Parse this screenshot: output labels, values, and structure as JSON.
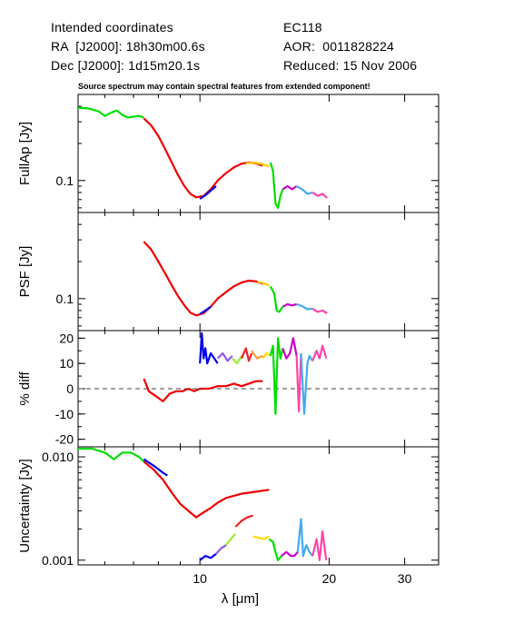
{
  "header": {
    "line1_left": "Intended coordinates",
    "line1_right": "EC118",
    "line2_left": "RA  [J2000]: 18h30m00.6s",
    "line2_right": "AOR:  0011828224",
    "line3_left": "Dec [J2000]: 1d15m20.1s",
    "line3_right": "Reduced: 15 Nov 2006"
  },
  "note": "Source spectrum may contain spectral features from extended component!",
  "chart_data": [
    {
      "type": "line",
      "panel": "fullap",
      "ylabel": "FullAp [Jy]",
      "yscale": "log",
      "yticks": [
        {
          "value": 0.1,
          "label": "0.1"
        }
      ],
      "xlim": [
        5.2,
        36
      ],
      "ylim": [
        0.055,
        0.5
      ],
      "series": [
        {
          "color": "#00dd00",
          "x": [
            5.2,
            5.5,
            5.8,
            6.0,
            6.2,
            6.4,
            6.6,
            6.8,
            7.0,
            7.2,
            7.4
          ],
          "y": [
            0.39,
            0.385,
            0.365,
            0.335,
            0.355,
            0.37,
            0.34,
            0.325,
            0.33,
            0.335,
            0.325
          ]
        },
        {
          "color": "#ee0000",
          "x": [
            7.4,
            7.7,
            8.0,
            8.3,
            8.6,
            8.9,
            9.2,
            9.5,
            9.8,
            10.2,
            10.6,
            11.0,
            11.5,
            12.0,
            12.5,
            13.0,
            13.5,
            14.0
          ],
          "y": [
            0.32,
            0.28,
            0.23,
            0.18,
            0.14,
            0.11,
            0.09,
            0.078,
            0.073,
            0.075,
            0.085,
            0.1,
            0.115,
            0.128,
            0.137,
            0.14,
            0.138,
            0.132
          ]
        },
        {
          "color": "#0000ee",
          "x": [
            10.0,
            10.3,
            10.6,
            10.9
          ],
          "y": [
            0.071,
            0.076,
            0.083,
            0.09
          ]
        },
        {
          "color": "#ffcc00",
          "x": [
            12.8,
            13.4,
            14.0,
            14.5
          ],
          "y": [
            0.138,
            0.14,
            0.136,
            0.13
          ]
        },
        {
          "color": "#00dd00",
          "x": [
            14.6,
            14.8,
            15.0,
            15.2,
            15.4,
            15.6
          ],
          "y": [
            0.14,
            0.12,
            0.065,
            0.06,
            0.075,
            0.085
          ]
        },
        {
          "color": "#cc00cc",
          "x": [
            15.6,
            16.0,
            16.4,
            16.8
          ],
          "y": [
            0.085,
            0.09,
            0.085,
            0.09
          ]
        },
        {
          "color": "#44aaee",
          "x": [
            16.8,
            17.3,
            17.8,
            18.3
          ],
          "y": [
            0.09,
            0.085,
            0.078,
            0.08
          ]
        },
        {
          "color": "#ff44aa",
          "x": [
            18.3,
            18.8,
            19.3,
            19.8
          ],
          "y": [
            0.08,
            0.075,
            0.078,
            0.072
          ]
        }
      ]
    },
    {
      "type": "line",
      "panel": "psf",
      "ylabel": "PSF [Jy]",
      "yscale": "log",
      "yticks": [
        {
          "value": 0.1,
          "label": "0.1"
        }
      ],
      "xlim": [
        5.2,
        36
      ],
      "ylim": [
        0.055,
        0.5
      ],
      "series": [
        {
          "color": "#ee0000",
          "x": [
            7.4,
            7.7,
            8.0,
            8.3,
            8.6,
            8.9,
            9.2,
            9.5,
            9.8,
            10.2,
            10.6,
            11.0,
            11.5,
            12.0,
            12.5,
            13.0,
            13.5,
            14.0
          ],
          "y": [
            0.29,
            0.25,
            0.2,
            0.16,
            0.128,
            0.104,
            0.088,
            0.077,
            0.073,
            0.076,
            0.086,
            0.1,
            0.113,
            0.126,
            0.135,
            0.14,
            0.138,
            0.132
          ]
        },
        {
          "color": "#0000ee",
          "x": [
            10.0,
            10.3,
            10.6
          ],
          "y": [
            0.075,
            0.08,
            0.086
          ]
        },
        {
          "color": "#ffcc00",
          "x": [
            13.6,
            14.0,
            14.5
          ],
          "y": [
            0.137,
            0.134,
            0.128
          ]
        },
        {
          "color": "#00dd00",
          "x": [
            14.6,
            14.9,
            15.1,
            15.3,
            15.6
          ],
          "y": [
            0.126,
            0.11,
            0.08,
            0.078,
            0.086
          ]
        },
        {
          "color": "#cc00cc",
          "x": [
            15.6,
            16.0,
            16.4,
            16.8
          ],
          "y": [
            0.086,
            0.09,
            0.088,
            0.09
          ]
        },
        {
          "color": "#44aaee",
          "x": [
            16.8,
            17.3,
            17.8,
            18.3
          ],
          "y": [
            0.09,
            0.087,
            0.082,
            0.083
          ]
        },
        {
          "color": "#ff44aa",
          "x": [
            18.3,
            18.8,
            19.3,
            19.8
          ],
          "y": [
            0.083,
            0.078,
            0.08,
            0.076
          ]
        }
      ]
    },
    {
      "type": "line",
      "panel": "diff",
      "ylabel": "% diff",
      "yscale": "linear",
      "yticks": [
        {
          "value": 20,
          "label": "20"
        },
        {
          "value": 10,
          "label": "10"
        },
        {
          "value": 0,
          "label": "0"
        },
        {
          "value": -10,
          "label": "-10"
        },
        {
          "value": -20,
          "label": "-20"
        }
      ],
      "xlim": [
        5.2,
        36
      ],
      "ylim": [
        -23,
        23
      ],
      "zero_line": 0,
      "series": [
        {
          "color": "#ee0000",
          "x": [
            7.4,
            7.6,
            7.9,
            8.2,
            8.5,
            8.8,
            9.1,
            9.4,
            9.7,
            10.0,
            10.5,
            11.0,
            11.5,
            12.0,
            12.5,
            13.0,
            13.5,
            14.0
          ],
          "y": [
            4,
            -1,
            -3,
            -5,
            -2,
            -1,
            -1,
            0,
            -1,
            0,
            0,
            1,
            1,
            2,
            1,
            2,
            3,
            3
          ]
        },
        {
          "color": "#0000ee",
          "x": [
            10.0,
            10.1,
            10.2,
            10.3,
            10.4,
            10.6,
            10.8,
            11.0
          ],
          "y": [
            10,
            22,
            12,
            16,
            10,
            14,
            12,
            10
          ]
        },
        {
          "color": "#9955ee",
          "x": [
            11.0,
            11.3,
            11.6,
            11.9
          ],
          "y": [
            12,
            14,
            11,
            13
          ]
        },
        {
          "color": "#99ee33",
          "x": [
            11.9,
            12.2,
            12.5
          ],
          "y": [
            12,
            10,
            13
          ]
        },
        {
          "color": "#ee2222",
          "x": [
            12.5,
            12.8,
            13.0,
            13.2
          ],
          "y": [
            12,
            16,
            11,
            14
          ]
        },
        {
          "color": "#ff9933",
          "x": [
            13.2,
            13.6,
            14.0
          ],
          "y": [
            15,
            12,
            13
          ]
        },
        {
          "color": "#ffdd00",
          "x": [
            14.0,
            14.3,
            14.6
          ],
          "y": [
            12,
            14,
            13
          ]
        },
        {
          "color": "#00dd00",
          "x": [
            14.6,
            14.8,
            15.0,
            15.2,
            15.4,
            15.6
          ],
          "y": [
            13,
            17,
            -10,
            20,
            12,
            16
          ]
        },
        {
          "color": "#cc00cc",
          "x": [
            15.6,
            15.9,
            16.2,
            16.5,
            16.8
          ],
          "y": [
            16,
            12,
            14,
            20,
            13
          ]
        },
        {
          "color": "#ff44aa",
          "x": [
            16.8,
            17.0,
            17.2
          ],
          "y": [
            13,
            -9,
            14
          ]
        },
        {
          "color": "#44aaee",
          "x": [
            17.2,
            17.5,
            17.8,
            18.0,
            18.3
          ],
          "y": [
            14,
            -10,
            10,
            13,
            11
          ]
        },
        {
          "color": "#ff44aa",
          "x": [
            18.3,
            18.7,
            19.0,
            19.3,
            19.7
          ],
          "y": [
            11,
            15,
            12,
            17,
            12
          ]
        }
      ]
    },
    {
      "type": "line",
      "panel": "uncertainty",
      "ylabel": "Uncertainty [Jy]",
      "yscale": "log",
      "yticks": [
        {
          "value": 0.01,
          "label": "0.010"
        },
        {
          "value": 0.001,
          "label": "0.001"
        }
      ],
      "xlim": [
        5.2,
        36
      ],
      "ylim": [
        0.0009,
        0.0125
      ],
      "xlabel": "λ [μm]",
      "xticks": [
        {
          "value": 10,
          "label": "10"
        },
        {
          "value": 20,
          "label": "20"
        },
        {
          "value": 30,
          "label": "30"
        }
      ],
      "series": [
        {
          "color": "#00dd00",
          "x": [
            5.2,
            5.6,
            6.0,
            6.3,
            6.6,
            6.9,
            7.2,
            7.4
          ],
          "y": [
            0.012,
            0.012,
            0.011,
            0.0095,
            0.011,
            0.011,
            0.01,
            0.009
          ]
        },
        {
          "color": "#ee0000",
          "x": [
            7.4,
            7.8,
            8.2,
            8.6,
            9.0,
            9.4,
            9.8,
            10.2,
            10.6,
            11.0,
            11.5,
            12.0,
            12.5,
            13.0,
            13.5,
            14.0,
            14.5
          ],
          "y": [
            0.009,
            0.0075,
            0.006,
            0.0045,
            0.0035,
            0.003,
            0.0026,
            0.0029,
            0.0032,
            0.0036,
            0.004,
            0.0042,
            0.0044,
            0.0045,
            0.0046,
            0.0047,
            0.0048
          ]
        },
        {
          "color": "#0000ee",
          "x": [
            7.4,
            7.6,
            7.8,
            8.0,
            8.2,
            8.4
          ],
          "y": [
            0.0095,
            0.0088,
            0.0082,
            0.0076,
            0.007,
            0.0066
          ]
        },
        {
          "color": "#0000ee",
          "x": [
            10.0,
            10.3,
            10.6,
            10.9
          ],
          "y": [
            0.001,
            0.0011,
            0.00105,
            0.00115
          ]
        },
        {
          "color": "#9955ee",
          "x": [
            10.9,
            11.2,
            11.5
          ],
          "y": [
            0.00115,
            0.0013,
            0.0014
          ]
        },
        {
          "color": "#99ee33",
          "x": [
            11.5,
            11.8,
            12.1
          ],
          "y": [
            0.0014,
            0.0016,
            0.0018
          ]
        },
        {
          "color": "#ee2222",
          "x": [
            12.1,
            12.5,
            12.9,
            13.3
          ],
          "y": [
            0.0021,
            0.0024,
            0.0026,
            0.0027
          ]
        },
        {
          "color": "#ffdd00",
          "x": [
            13.3,
            13.7,
            14.1,
            14.5
          ],
          "y": [
            0.0017,
            0.00165,
            0.0016,
            0.0017
          ]
        },
        {
          "color": "#00dd00",
          "x": [
            14.5,
            14.8,
            15.0,
            15.2,
            15.5
          ],
          "y": [
            0.0016,
            0.0015,
            0.0012,
            0.001,
            0.0011
          ]
        },
        {
          "color": "#cc00cc",
          "x": [
            15.5,
            15.9,
            16.3,
            16.6,
            16.9
          ],
          "y": [
            0.0011,
            0.0012,
            0.0011,
            0.0011,
            0.0012
          ]
        },
        {
          "color": "#44aaee",
          "x": [
            16.9,
            17.2,
            17.4,
            17.7,
            18.0,
            18.3
          ],
          "y": [
            0.0012,
            0.0025,
            0.0011,
            0.0014,
            0.0012,
            0.0011
          ]
        },
        {
          "color": "#ff44aa",
          "x": [
            18.3,
            18.7,
            19.0,
            19.3,
            19.7
          ],
          "y": [
            0.0011,
            0.0016,
            0.001,
            0.0019,
            0.001
          ]
        }
      ]
    }
  ]
}
